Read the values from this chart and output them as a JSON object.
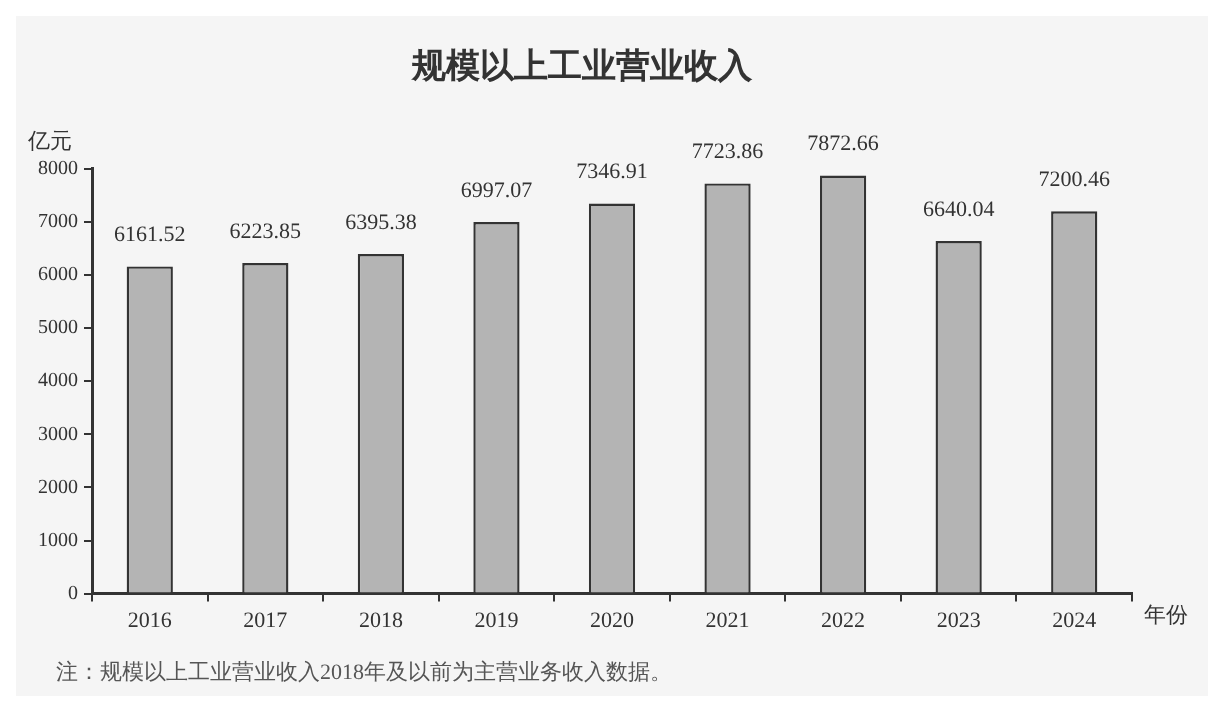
{
  "chart_data": {
    "type": "bar",
    "title": "规模以上工业营业收入",
    "ylabel": "亿元",
    "xlabel": "年份",
    "categories": [
      "2016",
      "2017",
      "2018",
      "2019",
      "2020",
      "2021",
      "2022",
      "2023",
      "2024"
    ],
    "values": [
      6161.52,
      6223.85,
      6395.38,
      6997.07,
      7346.91,
      7723.86,
      7872.66,
      6640.04,
      7200.46
    ],
    "color": "#b4b4b4",
    "ylim": [
      0,
      8000
    ],
    "yticks": [
      0,
      1000,
      2000,
      3000,
      4000,
      5000,
      6000,
      7000,
      8000
    ],
    "grid": false,
    "data_labels": true,
    "annotations": [
      "注：规模以上工业营业收入2018年及以前为主营业务收入数据。"
    ]
  }
}
